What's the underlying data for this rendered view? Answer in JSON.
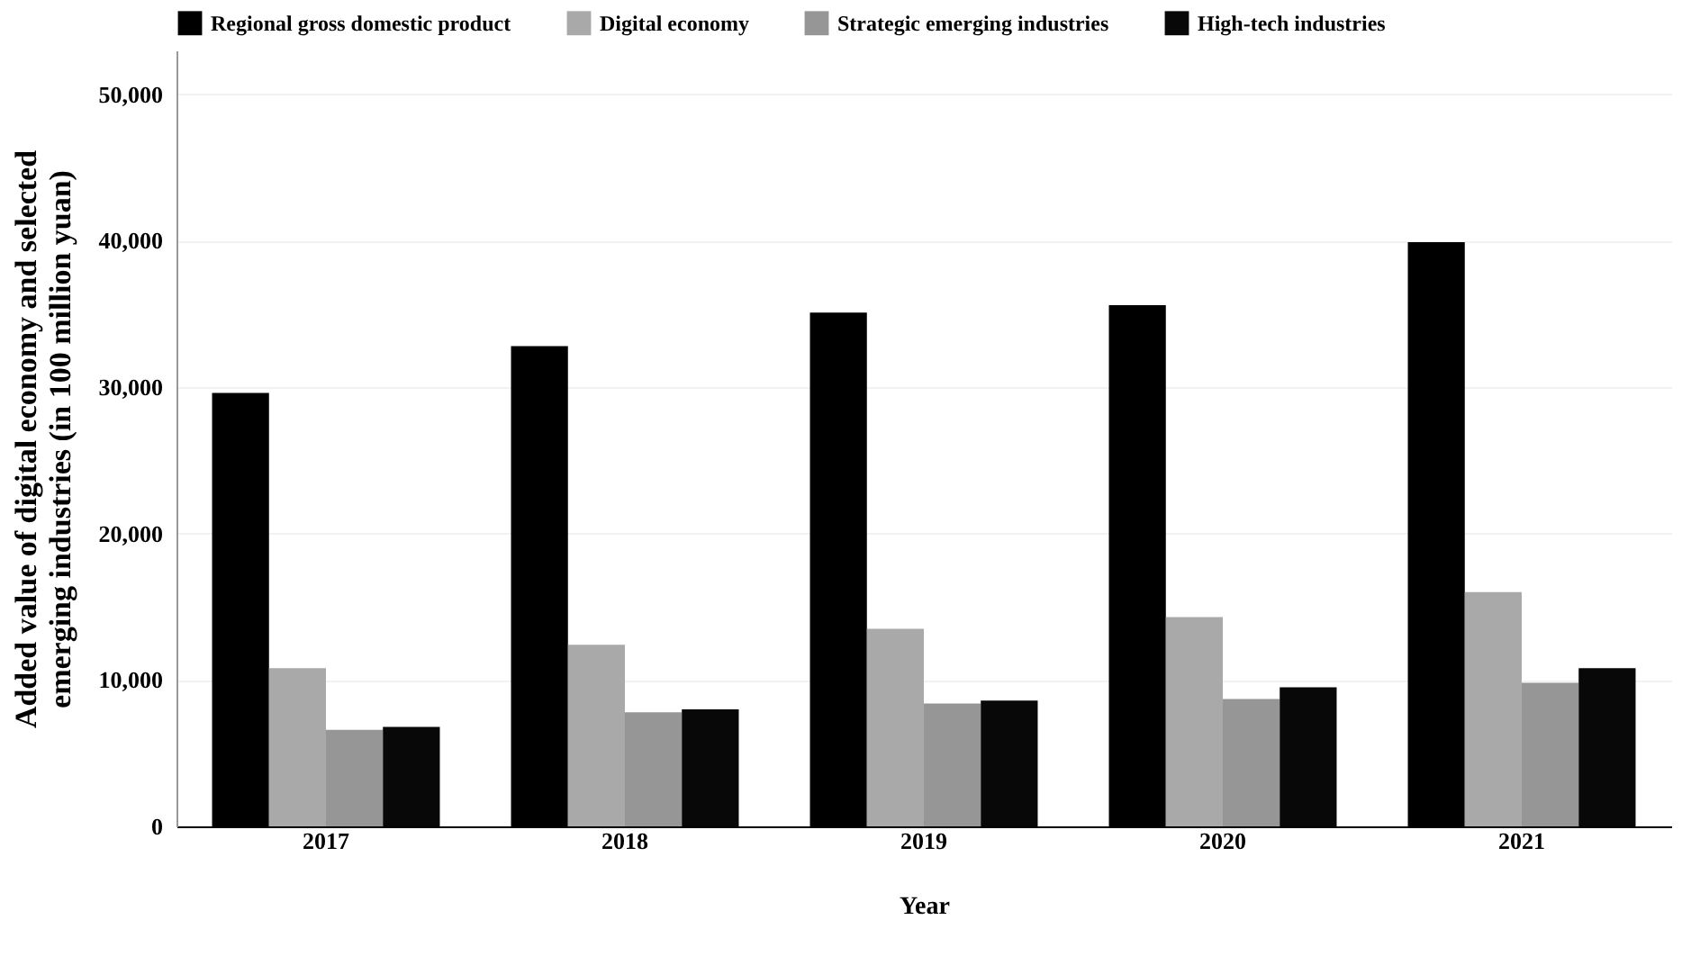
{
  "chart_data": {
    "type": "bar",
    "xlabel": "Year",
    "ylabel": "Added value of digital economy and selected emerging industries (in 100 million yuan)",
    "categories": [
      "2017",
      "2018",
      "2019",
      "2020",
      "2021"
    ],
    "series": [
      {
        "name": "Regional gross domestic product",
        "color": "#000000",
        "values": [
          29600,
          32800,
          35100,
          35600,
          39900
        ]
      },
      {
        "name": "Digital economy",
        "color": "#a9a9a9",
        "values": [
          10800,
          12400,
          13500,
          14300,
          16000
        ]
      },
      {
        "name": "Strategic emerging industries",
        "color": "#969696",
        "values": [
          6600,
          7800,
          8400,
          8700,
          9800
        ]
      },
      {
        "name": "High-tech industries",
        "color": "#080808",
        "values": [
          6800,
          8000,
          8600,
          9500,
          10800
        ]
      }
    ],
    "ylim": [
      0,
      53000
    ],
    "yticks": [
      0,
      {
        "value": 10000,
        "label": "10,000"
      },
      {
        "value": 20000,
        "label": "20,000"
      },
      {
        "value": 30000,
        "label": "30,000"
      },
      {
        "value": 40000,
        "label": "40,000"
      },
      {
        "value": 50000,
        "label": "50,000"
      }
    ],
    "grid": "y",
    "legend": "top"
  }
}
